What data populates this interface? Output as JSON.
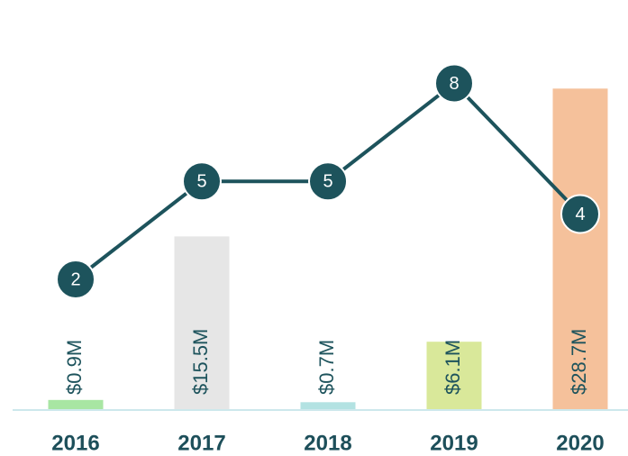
{
  "chart_data": {
    "type": "bar",
    "categories": [
      "2016",
      "2017",
      "2018",
      "2019",
      "2020"
    ],
    "ylim": [
      0,
      35
    ],
    "y2lim": [
      -2,
      10
    ],
    "series": [
      {
        "type": "bar",
        "colors": [
          "#a8e6a3",
          "#e6e6e6",
          "#b3e2e2",
          "#d9e89a",
          "#f5c19b"
        ],
        "values": [
          0.9,
          15.5,
          0.7,
          6.1,
          28.7
        ],
        "value_labels": [
          "$0.9M",
          "$15.5M",
          "$0.7M",
          "$6.1M",
          "$28.7M"
        ]
      },
      {
        "type": "line",
        "axis": "y2",
        "color": "#1d535c",
        "values": [
          2,
          5,
          5,
          8,
          4
        ]
      }
    ]
  }
}
